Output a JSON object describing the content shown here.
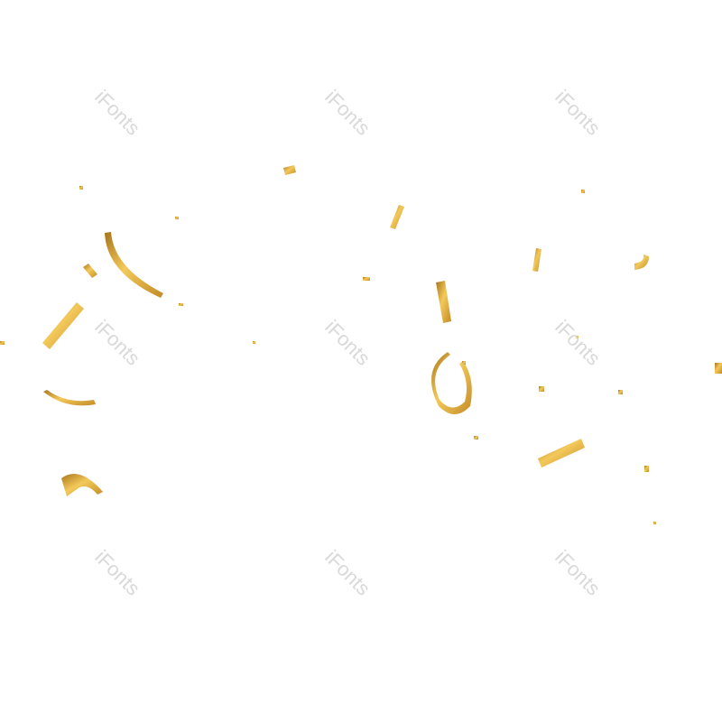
{
  "watermark": {
    "text": "iFonts"
  },
  "colors": {
    "gold_light": "#f3c95a",
    "gold_mid": "#d9a233",
    "gold_dark": "#a8741c",
    "background": "#ffffff",
    "watermark": "#d9d9d9"
  }
}
